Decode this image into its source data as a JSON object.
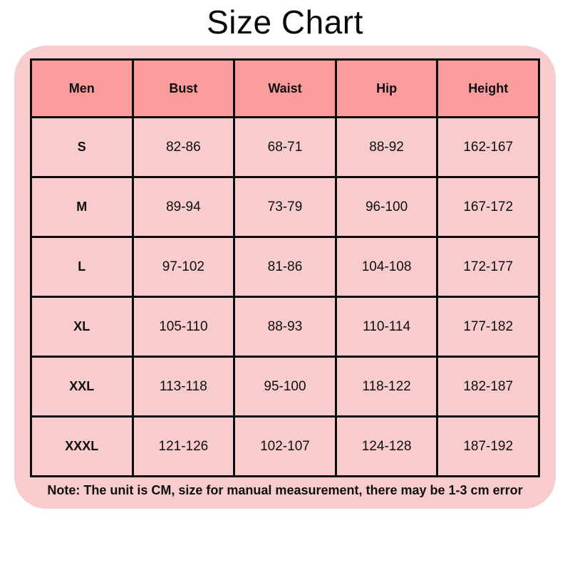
{
  "title": "Size Chart",
  "colors": {
    "page_bg": "#ffffff",
    "panel_bg": "#f8cccd",
    "header_bg": "#f99c9b",
    "cell_bg": "#f8cccd",
    "border": "#0b0b0b",
    "text": "#0e0e0e"
  },
  "table": {
    "headers": [
      "Men",
      "Bust",
      "Waist",
      "Hip",
      "Height"
    ],
    "rows": [
      {
        "size": "S",
        "values": [
          "82-86",
          "68-71",
          "88-92",
          "162-167"
        ]
      },
      {
        "size": "M",
        "values": [
          "89-94",
          "73-79",
          "96-100",
          "167-172"
        ]
      },
      {
        "size": "L",
        "values": [
          "97-102",
          "81-86",
          "104-108",
          "172-177"
        ]
      },
      {
        "size": "XL",
        "values": [
          "105-110",
          "88-93",
          "110-114",
          "177-182"
        ]
      },
      {
        "size": "XXL",
        "values": [
          "113-118",
          "95-100",
          "118-122",
          "182-187"
        ]
      },
      {
        "size": "XXXL",
        "values": [
          "121-126",
          "102-107",
          "124-128",
          "187-192"
        ]
      }
    ]
  },
  "note": "Note: The unit is CM, size for manual measurement, there may be 1-3 cm error"
}
